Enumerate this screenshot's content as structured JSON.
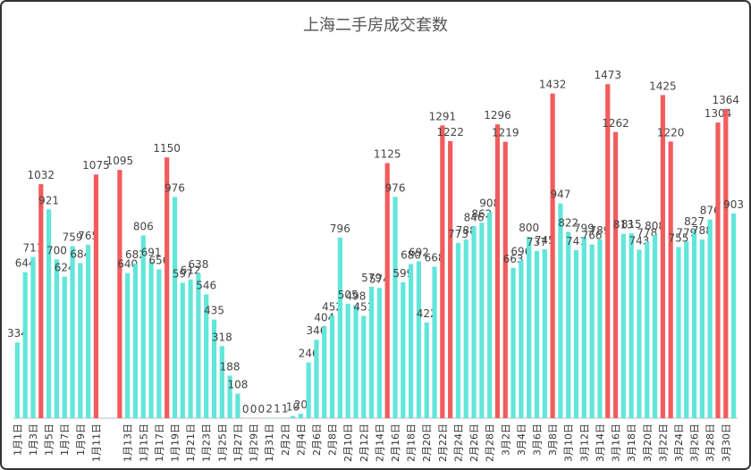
{
  "chart_data": {
    "type": "bar",
    "title": "上海二手房成交套数",
    "categories": [
      "1月1日",
      null,
      "1月3日",
      null,
      "1月5日",
      null,
      "1月7日",
      null,
      "1月9日",
      null,
      "1月11日",
      null,
      null,
      null,
      "1月13日",
      null,
      "1月15日",
      null,
      "1月17日",
      null,
      "1月19日",
      null,
      "1月21日",
      null,
      "1月23日",
      null,
      "1月25日",
      null,
      "1月27日",
      null,
      "1月29日",
      null,
      "1月31日",
      null,
      "2月2日",
      null,
      "2月4日",
      null,
      "2月6日",
      null,
      "2月8日",
      null,
      "2月10日",
      null,
      "2月12日",
      null,
      "2月14日",
      null,
      "2月16日",
      null,
      "2月18日",
      null,
      "2月20日",
      null,
      "2月22日",
      null,
      "2月24日",
      null,
      "2月26日",
      null,
      "2月28日",
      null,
      "3月2日",
      null,
      "3月4日",
      null,
      "3月6日",
      null,
      "3月8日",
      null,
      "3月10日",
      null,
      "3月12日",
      null,
      "3月14日",
      null,
      "3月16日",
      null,
      "3月18日",
      null,
      "3月20日",
      null,
      "3月22日",
      null,
      "3月24日",
      null,
      "3月26日",
      null,
      "3月28日",
      null,
      "3月30日",
      null
    ],
    "values": [
      334,
      644,
      711,
      1032,
      921,
      700,
      624,
      759,
      684,
      765,
      1075,
      null,
      null,
      1095,
      640,
      682,
      806,
      691,
      656,
      1150,
      976,
      597,
      612,
      638,
      546,
      435,
      318,
      188,
      108,
      0,
      0,
      0,
      2,
      1,
      1,
      10,
      20,
      246,
      346,
      404,
      452,
      796,
      505,
      498,
      451,
      579,
      574,
      1125,
      976,
      599,
      680,
      692,
      422,
      668,
      1291,
      1222,
      773,
      788,
      846,
      862,
      908,
      1296,
      1219,
      663,
      696,
      800,
      737,
      745,
      1432,
      947,
      822,
      741,
      799,
      766,
      789,
      1473,
      1262,
      813,
      815,
      743,
      778,
      808,
      1425,
      1220,
      755,
      779,
      827,
      788,
      876,
      1304,
      1364,
      903
    ],
    "colors": [
      "#62e6da",
      "#62e6da",
      "#62e6da",
      "#f25c5c",
      "#62e6da",
      "#62e6da",
      "#62e6da",
      "#62e6da",
      "#62e6da",
      "#62e6da",
      "#f25c5c",
      "#62e6da",
      "#62e6da",
      "#f25c5c",
      "#62e6da",
      "#62e6da",
      "#62e6da",
      "#62e6da",
      "#62e6da",
      "#f25c5c",
      "#62e6da",
      "#62e6da",
      "#62e6da",
      "#62e6da",
      "#62e6da",
      "#62e6da",
      "#62e6da",
      "#62e6da",
      "#62e6da",
      "#62e6da",
      "#62e6da",
      "#62e6da",
      "#62e6da",
      "#62e6da",
      "#62e6da",
      "#62e6da",
      "#62e6da",
      "#62e6da",
      "#62e6da",
      "#62e6da",
      "#62e6da",
      "#62e6da",
      "#62e6da",
      "#62e6da",
      "#62e6da",
      "#62e6da",
      "#62e6da",
      "#f25c5c",
      "#62e6da",
      "#62e6da",
      "#62e6da",
      "#62e6da",
      "#62e6da",
      "#62e6da",
      "#f25c5c",
      "#f25c5c",
      "#62e6da",
      "#62e6da",
      "#62e6da",
      "#62e6da",
      "#62e6da",
      "#f25c5c",
      "#f25c5c",
      "#62e6da",
      "#62e6da",
      "#62e6da",
      "#62e6da",
      "#62e6da",
      "#f25c5c",
      "#62e6da",
      "#62e6da",
      "#62e6da",
      "#62e6da",
      "#62e6da",
      "#62e6da",
      "#f25c5c",
      "#f25c5c",
      "#62e6da",
      "#62e6da",
      "#62e6da",
      "#62e6da",
      "#62e6da",
      "#f25c5c",
      "#f25c5c",
      "#62e6da",
      "#62e6da",
      "#62e6da",
      "#62e6da",
      "#62e6da",
      "#f25c5c",
      "#f25c5c",
      "#62e6da"
    ],
    "ylim": [
      0,
      1600
    ]
  }
}
